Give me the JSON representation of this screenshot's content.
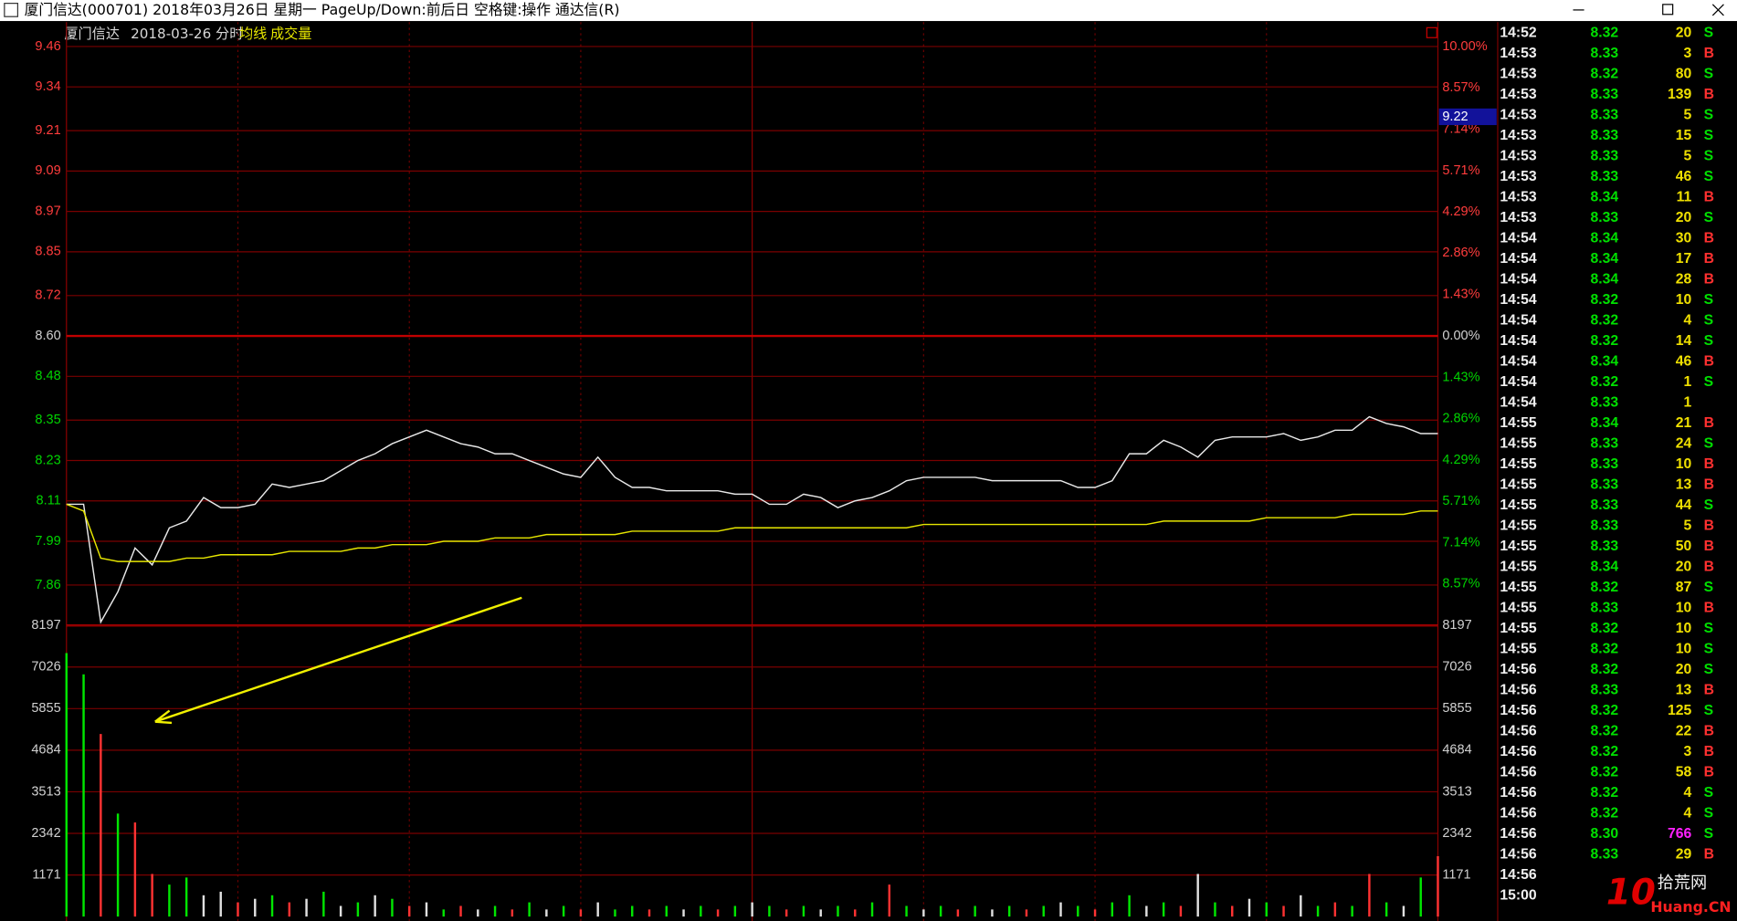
{
  "window": {
    "title": "厦门信达(000701) 2018年03月26日 星期一 PageUp/Down:前后日 空格键:操作 通达信(R)"
  },
  "cursor_label": "9.22",
  "watermark": {
    "logo": "10",
    "name": "拾荒网",
    "site": "Huang.CN"
  },
  "chart_data": [
    {
      "type": "line",
      "title": "厦门信达",
      "subtitle": "2018-03-26 分时",
      "ylim": [
        7.74,
        9.46
      ],
      "yticks": [
        9.46,
        9.34,
        9.21,
        9.09,
        8.97,
        8.85,
        8.72,
        {
          "value": 8.6,
          "label": "8.60"
        },
        8.48,
        8.35,
        8.23,
        8.11,
        7.99,
        7.86
      ],
      "y2lim": [
        -10,
        10
      ],
      "y2ticks": [
        {
          "value": 10,
          "label": "10.00%"
        },
        {
          "value": 8.57,
          "label": "8.57%"
        },
        {
          "value": 7.14,
          "label": "7.14%"
        },
        {
          "value": 5.71,
          "label": "5.71%"
        },
        {
          "value": 4.29,
          "label": "4.29%"
        },
        {
          "value": 2.86,
          "label": "2.86%"
        },
        {
          "value": 1.43,
          "label": "1.43%"
        },
        {
          "value": 0,
          "label": "0.00%"
        },
        {
          "value": -1.43,
          "label": "1.43%"
        },
        {
          "value": -2.86,
          "label": "2.86%"
        },
        {
          "value": -4.29,
          "label": "4.29%"
        },
        {
          "value": -5.71,
          "label": "5.71%"
        },
        {
          "value": -7.14,
          "label": "7.14%"
        },
        {
          "value": -8.57,
          "label": "8.57%"
        }
      ],
      "grid": true,
      "series": [
        {
          "color": "#e8e8e8",
          "values": [
            8.1,
            8.1,
            7.75,
            7.84,
            7.97,
            7.92,
            8.03,
            8.05,
            8.12,
            8.09,
            8.09,
            8.1,
            8.16,
            8.15,
            8.16,
            8.17,
            8.2,
            8.23,
            8.25,
            8.28,
            8.3,
            8.32,
            8.3,
            8.28,
            8.27,
            8.25,
            8.25,
            8.23,
            8.21,
            8.19,
            8.18,
            8.24,
            8.18,
            8.15,
            8.15,
            8.14,
            8.14,
            8.14,
            8.14,
            8.13,
            8.13,
            8.1,
            8.1,
            8.13,
            8.12,
            8.09,
            8.11,
            8.12,
            8.14,
            8.17,
            8.18,
            8.18,
            8.18,
            8.18,
            8.17,
            8.17,
            8.17,
            8.17,
            8.17,
            8.15,
            8.15,
            8.17,
            8.25,
            8.25,
            8.29,
            8.27,
            8.24,
            8.29,
            8.3,
            8.3,
            8.3,
            8.31,
            8.29,
            8.3,
            8.32,
            8.32,
            8.36,
            8.34,
            8.33,
            8.31,
            8.31
          ]
        },
        {
          "name": "均线",
          "color": "#e6e600",
          "values": [
            8.1,
            8.08,
            7.94,
            7.93,
            7.93,
            7.93,
            7.93,
            7.94,
            7.94,
            7.95,
            7.95,
            7.95,
            7.95,
            7.96,
            7.96,
            7.96,
            7.96,
            7.97,
            7.97,
            7.98,
            7.98,
            7.98,
            7.99,
            7.99,
            7.99,
            8.0,
            8.0,
            8.0,
            8.01,
            8.01,
            8.01,
            8.01,
            8.01,
            8.02,
            8.02,
            8.02,
            8.02,
            8.02,
            8.02,
            8.03,
            8.03,
            8.03,
            8.03,
            8.03,
            8.03,
            8.03,
            8.03,
            8.03,
            8.03,
            8.03,
            8.04,
            8.04,
            8.04,
            8.04,
            8.04,
            8.04,
            8.04,
            8.04,
            8.04,
            8.04,
            8.04,
            8.04,
            8.04,
            8.04,
            8.05,
            8.05,
            8.05,
            8.05,
            8.05,
            8.05,
            8.06,
            8.06,
            8.06,
            8.06,
            8.06,
            8.07,
            8.07,
            8.07,
            8.07,
            8.08,
            8.08
          ]
        }
      ]
    },
    {
      "type": "bar",
      "ylim": [
        0,
        8197
      ],
      "yticks": [
        8197,
        7026,
        5855,
        4684,
        3513,
        2342,
        1171
      ],
      "grid": true,
      "series": [
        {
          "name": "成交量",
          "values": [
            7420,
            6820,
            5140,
            2900,
            2650,
            1200,
            900,
            1100,
            600,
            700,
            400,
            500,
            600,
            400,
            500,
            700,
            300,
            400,
            600,
            500,
            300,
            400,
            200,
            300,
            200,
            300,
            200,
            400,
            200,
            300,
            200,
            400,
            200,
            300,
            200,
            300,
            200,
            300,
            200,
            300,
            400,
            300,
            200,
            300,
            200,
            300,
            200,
            400,
            900,
            300,
            200,
            300,
            200,
            300,
            200,
            300,
            200,
            300,
            400,
            300,
            200,
            400,
            600,
            300,
            400,
            300,
            1200,
            400,
            300,
            500,
            400,
            300,
            600,
            300,
            400,
            300,
            1200,
            400,
            300,
            1100,
            1700
          ],
          "colors": [
            "#00e600",
            "#00e600",
            "#ff3232",
            "#00e600",
            "#ff3232",
            "#ff3232",
            "#00e600",
            "#00e600",
            "#e0e0e0",
            "#e0e0e0",
            "#ff3232",
            "#e0e0e0",
            "#00e600",
            "#ff3232",
            "#e0e0e0",
            "#00e600",
            "#e0e0e0",
            "#00e600",
            "#e0e0e0",
            "#00e600",
            "#ff3232",
            "#e0e0e0",
            "#00e600",
            "#ff3232",
            "#e0e0e0",
            "#00e600",
            "#ff3232",
            "#00e600",
            "#e0e0e0",
            "#00e600",
            "#ff3232",
            "#e0e0e0",
            "#00e600",
            "#00e600",
            "#ff3232",
            "#00e600",
            "#e0e0e0",
            "#00e600",
            "#ff3232",
            "#00e600",
            "#e0e0e0",
            "#00e600",
            "#ff3232",
            "#00e600",
            "#e0e0e0",
            "#00e600",
            "#ff3232",
            "#00e600",
            "#ff3232",
            "#00e600",
            "#e0e0e0",
            "#00e600",
            "#ff3232",
            "#00e600",
            "#e0e0e0",
            "#00e600",
            "#ff3232",
            "#00e600",
            "#e0e0e0",
            "#00e600",
            "#ff3232",
            "#00e600",
            "#00e600",
            "#e0e0e0",
            "#00e600",
            "#ff3232",
            "#e0e0e0",
            "#00e600",
            "#ff3232",
            "#e0e0e0",
            "#00e600",
            "#ff3232",
            "#e0e0e0",
            "#00e600",
            "#ff3232",
            "#00e600",
            "#ff3232",
            "#00e600",
            "#e0e0e0",
            "#00e600",
            "#ff3232"
          ]
        }
      ]
    }
  ],
  "trades": {
    "side_colors": {
      "B": "#ff3030",
      "S": "#00e000"
    },
    "rows": [
      {
        "time": "14:52",
        "price": "8.32",
        "volume": "20",
        "side": "S"
      },
      {
        "time": "14:53",
        "price": "8.33",
        "volume": "3",
        "side": "B"
      },
      {
        "time": "14:53",
        "price": "8.32",
        "volume": "80",
        "side": "S"
      },
      {
        "time": "14:53",
        "price": "8.33",
        "volume": "139",
        "side": "B"
      },
      {
        "time": "14:53",
        "price": "8.33",
        "volume": "5",
        "side": "S"
      },
      {
        "time": "14:53",
        "price": "8.33",
        "volume": "15",
        "side": "S"
      },
      {
        "time": "14:53",
        "price": "8.33",
        "volume": "5",
        "side": "S"
      },
      {
        "time": "14:53",
        "price": "8.33",
        "volume": "46",
        "side": "S"
      },
      {
        "time": "14:53",
        "price": "8.34",
        "volume": "11",
        "side": "B"
      },
      {
        "time": "14:53",
        "price": "8.33",
        "volume": "20",
        "side": "S"
      },
      {
        "time": "14:54",
        "price": "8.34",
        "volume": "30",
        "side": "B"
      },
      {
        "time": "14:54",
        "price": "8.34",
        "volume": "17",
        "side": "B"
      },
      {
        "time": "14:54",
        "price": "8.34",
        "volume": "28",
        "side": "B"
      },
      {
        "time": "14:54",
        "price": "8.32",
        "volume": "10",
        "side": "S"
      },
      {
        "time": "14:54",
        "price": "8.32",
        "volume": "4",
        "side": "S"
      },
      {
        "time": "14:54",
        "price": "8.32",
        "volume": "14",
        "side": "S"
      },
      {
        "time": "14:54",
        "price": "8.34",
        "volume": "46",
        "side": "B"
      },
      {
        "time": "14:54",
        "price": "8.32",
        "volume": "1",
        "side": "S"
      },
      {
        "time": "14:54",
        "price": "8.33",
        "volume": "1"
      },
      {
        "time": "14:55",
        "price": "8.34",
        "volume": "21",
        "side": "B"
      },
      {
        "time": "14:55",
        "price": "8.33",
        "volume": "24",
        "side": "S"
      },
      {
        "time": "14:55",
        "price": "8.33",
        "volume": "10",
        "side": "B"
      },
      {
        "time": "14:55",
        "price": "8.33",
        "volume": "13",
        "side": "B"
      },
      {
        "time": "14:55",
        "price": "8.33",
        "volume": "44",
        "side": "S"
      },
      {
        "time": "14:55",
        "price": "8.33",
        "volume": "5",
        "side": "B"
      },
      {
        "time": "14:55",
        "price": "8.33",
        "volume": "50",
        "side": "B"
      },
      {
        "time": "14:55",
        "price": "8.34",
        "volume": "20",
        "side": "B"
      },
      {
        "time": "14:55",
        "price": "8.32",
        "volume": "87",
        "side": "S"
      },
      {
        "time": "14:55",
        "price": "8.33",
        "volume": "10",
        "side": "B"
      },
      {
        "time": "14:55",
        "price": "8.32",
        "volume": "10",
        "side": "S"
      },
      {
        "time": "14:55",
        "price": "8.32",
        "volume": "10",
        "side": "S"
      },
      {
        "time": "14:56",
        "price": "8.32",
        "volume": "20",
        "side": "S"
      },
      {
        "time": "14:56",
        "price": "8.33",
        "volume": "13",
        "side": "B"
      },
      {
        "time": "14:56",
        "price": "8.32",
        "volume": "125",
        "side": "S"
      },
      {
        "time": "14:56",
        "price": "8.32",
        "volume": "22",
        "side": "B"
      },
      {
        "time": "14:56",
        "price": "8.32",
        "volume": "3",
        "side": "B"
      },
      {
        "time": "14:56",
        "price": "8.32",
        "volume": "58",
        "side": "B"
      },
      {
        "time": "14:56",
        "price": "8.32",
        "volume": "4",
        "side": "S"
      },
      {
        "time": "14:56",
        "price": "8.32",
        "volume": "4",
        "side": "S"
      },
      {
        "time": "14:56",
        "price": "8.30",
        "volume": "766",
        "side": "S",
        "volume_color": "#ff20ff"
      },
      {
        "time": "14:56",
        "price": "8.33",
        "volume": "29",
        "side": "B"
      },
      {
        "time": "14:56"
      },
      {
        "time": "15:00"
      }
    ]
  }
}
